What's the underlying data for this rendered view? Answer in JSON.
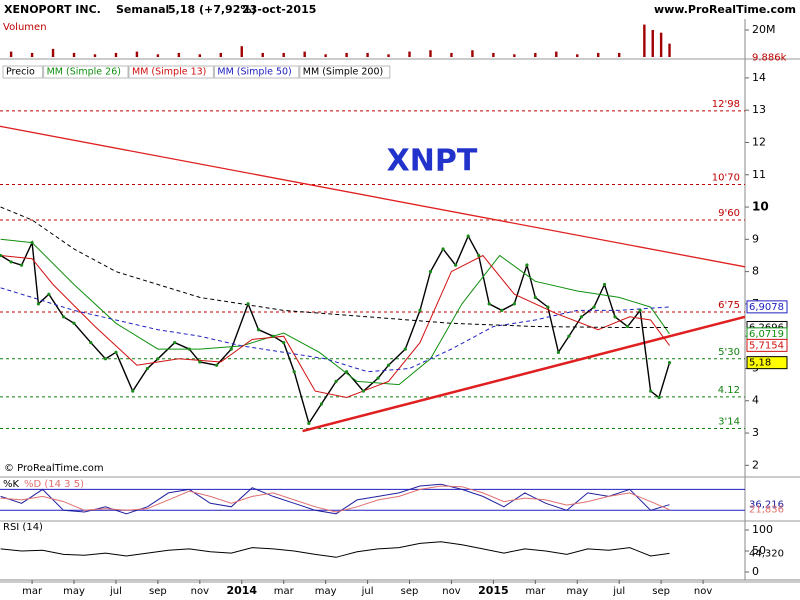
{
  "header": {
    "symbol": "XENOPORT INC.",
    "period": "Semanal",
    "quote": "5,18 (+7,92%)",
    "date": "23-oct-2015",
    "site": "www.ProRealTime.com",
    "watermark": "XNPT",
    "copyright": "© ProRealTime.com"
  },
  "chart_data": [
    {
      "type": "bar",
      "title": "Volumen",
      "color": "#a00000",
      "ylim": [
        0,
        27.4
      ],
      "yticks": [
        {
          "value": 20,
          "label": "20M"
        }
      ],
      "x": [
        1,
        2,
        3,
        4,
        5,
        6,
        7,
        8,
        9,
        10,
        11,
        12,
        13,
        14,
        15,
        16,
        17,
        18,
        19,
        20,
        21,
        22,
        23,
        24,
        25,
        26,
        27,
        28,
        29,
        30,
        31.2,
        31.6,
        32.0,
        32.4
      ],
      "values": [
        4,
        3,
        6,
        3,
        2,
        3,
        4,
        2,
        3,
        2,
        3,
        8,
        3,
        3,
        4,
        2,
        3,
        3,
        2,
        4,
        5,
        3,
        5,
        3,
        2,
        3,
        4,
        2,
        3,
        3,
        24,
        20,
        18,
        9.886
      ],
      "value_labels": [
        null,
        null,
        null,
        null,
        null,
        null,
        null,
        null,
        null,
        null,
        null,
        null,
        null,
        null,
        null,
        null,
        null,
        null,
        null,
        null,
        null,
        null,
        null,
        null,
        null,
        null,
        null,
        null,
        null,
        null,
        null,
        null,
        null,
        "9.886k"
      ]
    },
    {
      "type": "line",
      "title": "Precio",
      "xlim": [
        0.47,
        36.0
      ],
      "ylim": [
        1.7,
        14.4
      ],
      "yticks": [
        2,
        3,
        4,
        5,
        6,
        7,
        8,
        9,
        10,
        11,
        12,
        13,
        14
      ],
      "xticks": [
        {
          "value": 2,
          "label": "mar"
        },
        {
          "value": 4,
          "label": "may"
        },
        {
          "value": 6,
          "label": "jul"
        },
        {
          "value": 8,
          "label": "sep"
        },
        {
          "value": 10,
          "label": "nov"
        },
        {
          "value": 12,
          "label": "2014"
        },
        {
          "value": 14,
          "label": "mar"
        },
        {
          "value": 16,
          "label": "may"
        },
        {
          "value": 18,
          "label": "jul"
        },
        {
          "value": 20,
          "label": "sep"
        },
        {
          "value": 22,
          "label": "nov"
        },
        {
          "value": 24,
          "label": "2015"
        },
        {
          "value": 26,
          "label": "mar"
        },
        {
          "value": 28,
          "label": "may"
        },
        {
          "value": 30,
          "label": "jul"
        },
        {
          "value": 32,
          "label": "sep"
        },
        {
          "value": 34,
          "label": "nov"
        }
      ],
      "series": [
        {
          "name": "Precio",
          "color": "#000000",
          "x": [
            0.5,
            1.0,
            1.5,
            2.0,
            2.3,
            2.8,
            3.5,
            4.0,
            4.8,
            5.5,
            6.0,
            6.8,
            7.5,
            8.0,
            8.8,
            9.5,
            10.0,
            10.8,
            11.5,
            12.3,
            12.8,
            13.5,
            14.0,
            14.5,
            15.2,
            15.8,
            16.5,
            17.0,
            17.8,
            18.5,
            19.0,
            19.8,
            20.5,
            21.0,
            21.6,
            22.2,
            22.8,
            23.3,
            23.8,
            24.4,
            25.0,
            25.6,
            26.0,
            26.6,
            27.1,
            27.6,
            28.2,
            28.8,
            29.3,
            29.8,
            30.4,
            31.0,
            31.5,
            31.9,
            32.4
          ],
          "values": [
            8.5,
            8.3,
            8.2,
            8.9,
            7.0,
            7.3,
            6.6,
            6.4,
            5.8,
            5.3,
            5.5,
            4.3,
            5.0,
            5.3,
            5.8,
            5.6,
            5.2,
            5.1,
            5.6,
            7.0,
            6.2,
            6.0,
            5.8,
            4.9,
            3.3,
            3.9,
            4.6,
            4.9,
            4.3,
            4.7,
            5.1,
            5.6,
            6.8,
            8.0,
            8.7,
            8.2,
            9.1,
            8.5,
            7.0,
            6.8,
            7.0,
            8.2,
            7.2,
            6.9,
            5.5,
            6.0,
            6.6,
            6.9,
            7.6,
            6.6,
            6.3,
            6.8,
            4.3,
            4.1,
            5.18
          ]
        },
        {
          "name": "MM (Simple 26)",
          "color": "#109010",
          "dash": false,
          "x": [
            0.5,
            2,
            4,
            6,
            8,
            10,
            12,
            14,
            15.7,
            17.5,
            19.5,
            21,
            22.5,
            24.3,
            26,
            28,
            30,
            31.5,
            32.4
          ],
          "values": [
            9.0,
            8.9,
            7.6,
            6.4,
            5.6,
            5.6,
            5.7,
            6.1,
            5.5,
            4.6,
            4.5,
            5.3,
            7.0,
            8.5,
            7.7,
            7.4,
            7.2,
            6.9,
            6.0719
          ]
        },
        {
          "name": "MM (Simple 13)",
          "color": "#d01010",
          "dash": false,
          "x": [
            0.5,
            2,
            3,
            5,
            7,
            9,
            11,
            12.5,
            14,
            15.5,
            17,
            19,
            20.5,
            22,
            23.5,
            25,
            27,
            29,
            30.5,
            31.5,
            32.4
          ],
          "values": [
            8.5,
            8.4,
            7.6,
            6.3,
            5.1,
            5.3,
            5.2,
            5.9,
            6.0,
            4.3,
            4.1,
            4.6,
            5.8,
            8.0,
            8.5,
            7.3,
            6.7,
            6.2,
            6.6,
            6.5,
            5.7154
          ]
        },
        {
          "name": "MM (Simple 50)",
          "color": "#2020c0",
          "dash": true,
          "x": [
            0.5,
            2,
            4,
            6,
            8,
            10,
            12,
            14,
            16,
            18,
            20,
            22,
            24,
            26,
            28,
            30,
            32.4
          ],
          "values": [
            7.5,
            7.2,
            6.8,
            6.5,
            6.2,
            6.0,
            5.7,
            5.5,
            5.3,
            4.9,
            5.0,
            5.6,
            6.3,
            6.5,
            6.8,
            6.8,
            6.9078
          ]
        },
        {
          "name": "MM (Simple 200)",
          "color": "#000000",
          "dash": true,
          "x": [
            0.5,
            2,
            4,
            6,
            8,
            10,
            12,
            14,
            18,
            22,
            26,
            30,
            32.4
          ],
          "values": [
            10.0,
            9.6,
            8.7,
            8.0,
            7.6,
            7.2,
            7.0,
            6.8,
            6.6,
            6.4,
            6.3,
            6.27,
            6.2696
          ]
        }
      ],
      "levels": [
        {
          "value": 12.98,
          "label": "12'98",
          "color": "#c00000"
        },
        {
          "value": 10.7,
          "label": "10'70",
          "color": "#c00000"
        },
        {
          "value": 9.6,
          "label": "9'60",
          "color": "#c00000"
        },
        {
          "value": 6.75,
          "label": "6'75",
          "color": "#c00000"
        },
        {
          "value": 5.3,
          "label": "5'30",
          "color": "#108010"
        },
        {
          "value": 4.12,
          "label": "4.12",
          "color": "#108010"
        },
        {
          "value": 3.14,
          "label": "3'14",
          "color": "#108010"
        }
      ],
      "trendlines": [
        {
          "x": [
            0.47,
            36.0
          ],
          "values": [
            12.5,
            8.15
          ],
          "color": "#e02020"
        },
        {
          "x": [
            14.9,
            36.0
          ],
          "values": [
            3.06,
            6.6
          ],
          "color": "#e02020"
        }
      ],
      "axis_labels": {
        "values": [
          6.9078,
          6.2696,
          6.0719,
          5.7154,
          5.18
        ],
        "value_labels": [
          "6,9078",
          "6,2696",
          "6,0719",
          "5,7154",
          "5,18"
        ],
        "colors": [
          "#2020c0",
          "#000000",
          "#109010",
          "#d01010",
          "#000000"
        ],
        "fills": [
          "#ffffff",
          "#ffffff",
          "#ffffff",
          "#ffffff",
          "#ffff00"
        ]
      }
    },
    {
      "type": "line",
      "title": "%K",
      "subtitle": "%D (14 3 5)",
      "ylim": [
        -5,
        110
      ],
      "levels": [
        20,
        80
      ],
      "series": [
        {
          "name": "%K",
          "color": "#2020a0",
          "x": [
            0.5,
            1.5,
            2.5,
            3.5,
            4.5,
            5.5,
            6.5,
            7.5,
            8.5,
            9.5,
            10.5,
            11.5,
            12.5,
            13.5,
            14.5,
            15.5,
            16.5,
            17.5,
            18.5,
            19.5,
            20.5,
            21.5,
            22.5,
            23.5,
            24.5,
            25.5,
            26.5,
            27.5,
            28.5,
            29.5,
            30.5,
            31.5,
            32.4
          ],
          "values": [
            60,
            40,
            80,
            20,
            15,
            30,
            10,
            30,
            70,
            80,
            40,
            30,
            85,
            60,
            40,
            20,
            10,
            50,
            60,
            70,
            90,
            95,
            80,
            60,
            30,
            70,
            40,
            20,
            70,
            60,
            80,
            20,
            36.216
          ],
          "value_labels": [
            null,
            null,
            null,
            null,
            null,
            null,
            null,
            null,
            null,
            null,
            null,
            null,
            null,
            null,
            null,
            null,
            null,
            null,
            null,
            null,
            null,
            null,
            null,
            null,
            null,
            null,
            null,
            null,
            null,
            null,
            null,
            null,
            "36,216"
          ]
        },
        {
          "name": "%D",
          "color": "#e07070",
          "x": [
            0.5,
            1.5,
            2.5,
            3.5,
            4.5,
            5.5,
            6.5,
            7.5,
            8.5,
            9.5,
            10.5,
            11.5,
            12.5,
            13.5,
            14.5,
            15.5,
            16.5,
            17.5,
            18.5,
            19.5,
            20.5,
            21.5,
            22.5,
            23.5,
            24.5,
            25.5,
            26.5,
            27.5,
            28.5,
            29.5,
            30.5,
            31.5,
            32.4
          ],
          "values": [
            55,
            50,
            60,
            45,
            20,
            25,
            20,
            25,
            50,
            75,
            60,
            40,
            60,
            70,
            50,
            30,
            15,
            30,
            50,
            60,
            80,
            90,
            88,
            70,
            45,
            55,
            50,
            35,
            45,
            60,
            70,
            45,
            21.836
          ],
          "value_labels": [
            null,
            null,
            null,
            null,
            null,
            null,
            null,
            null,
            null,
            null,
            null,
            null,
            null,
            null,
            null,
            null,
            null,
            null,
            null,
            null,
            null,
            null,
            null,
            null,
            null,
            null,
            null,
            null,
            null,
            null,
            null,
            null,
            "21,836"
          ]
        }
      ]
    },
    {
      "type": "line",
      "title": "RSI (14)",
      "ylim": [
        -19,
        119
      ],
      "yticks": [
        0,
        50,
        100
      ],
      "series": [
        {
          "name": "RSI",
          "color": "#000000",
          "x": [
            0.5,
            1.5,
            2.5,
            3.5,
            4.5,
            5.5,
            6.5,
            7.5,
            8.5,
            9.5,
            10.5,
            11.5,
            12.5,
            13.5,
            14.5,
            15.5,
            16.5,
            17.5,
            18.5,
            19.5,
            20.5,
            21.5,
            22.5,
            23.5,
            24.5,
            25.5,
            26.5,
            27.5,
            28.5,
            29.5,
            30.5,
            31.5,
            32.4
          ],
          "values": [
            55,
            50,
            52,
            42,
            40,
            45,
            38,
            45,
            52,
            55,
            48,
            45,
            58,
            55,
            50,
            42,
            35,
            48,
            55,
            58,
            68,
            72,
            65,
            55,
            45,
            55,
            50,
            42,
            55,
            52,
            58,
            38,
            44.32
          ],
          "value_labels": [
            null,
            null,
            null,
            null,
            null,
            null,
            null,
            null,
            null,
            null,
            null,
            null,
            null,
            null,
            null,
            null,
            null,
            null,
            null,
            null,
            null,
            null,
            null,
            null,
            null,
            null,
            null,
            null,
            null,
            null,
            null,
            null,
            "44,320"
          ]
        }
      ]
    }
  ]
}
